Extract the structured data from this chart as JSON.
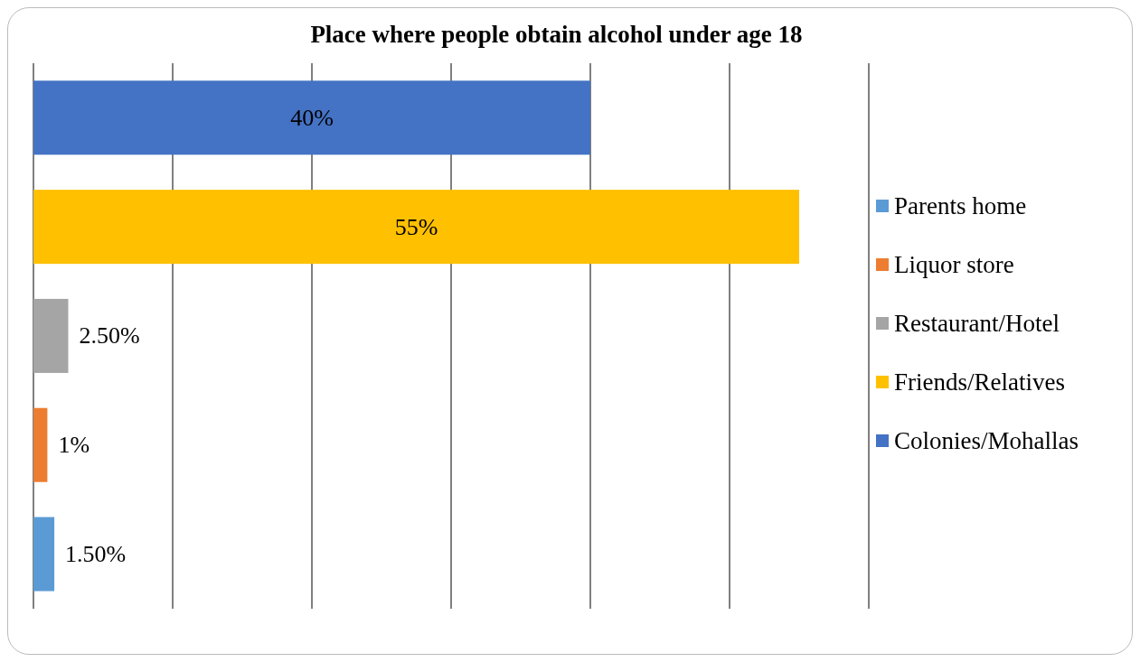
{
  "chart_data": {
    "type": "bar",
    "orientation": "horizontal",
    "stacked": true,
    "title": "Place where people obtain alcohol under age 18",
    "categories": [
      null,
      null,
      null,
      null,
      null
    ],
    "series": [
      {
        "name": "Parents home",
        "color": "#5b9bd5",
        "values": [
          null,
          null,
          null,
          null,
          1.5
        ],
        "value_labels": [
          null,
          null,
          null,
          null,
          "1.50%"
        ]
      },
      {
        "name": "Liquor store",
        "color": "#ed7d31",
        "values": [
          null,
          null,
          null,
          1,
          null
        ],
        "value_labels": [
          null,
          null,
          null,
          "1%",
          null
        ]
      },
      {
        "name": "Restaurant/Hotel",
        "color": "#a5a5a5",
        "values": [
          null,
          null,
          2.5,
          null,
          null
        ],
        "value_labels": [
          null,
          null,
          "2.50%",
          null,
          null
        ]
      },
      {
        "name": "Friends/Relatives",
        "color": "#ffc000",
        "values": [
          null,
          55,
          null,
          null,
          null
        ],
        "value_labels": [
          null,
          "55%",
          null,
          null,
          null
        ]
      },
      {
        "name": "Colonies/Mohallas",
        "color": "#4472c4",
        "values": [
          40,
          null,
          null,
          null,
          null
        ],
        "value_labels": [
          "40%",
          null,
          null,
          null,
          null
        ]
      }
    ],
    "xlim": [
      0,
      60
    ],
    "xticks": [
      {
        "value": 0,
        "label": null
      },
      {
        "value": 10,
        "label": null
      },
      {
        "value": 20,
        "label": null
      },
      {
        "value": 30,
        "label": null
      },
      {
        "value": 40,
        "label": null
      },
      {
        "value": 50,
        "label": null
      },
      {
        "value": 60,
        "label": null
      }
    ],
    "grid": "x",
    "legend": "right"
  }
}
